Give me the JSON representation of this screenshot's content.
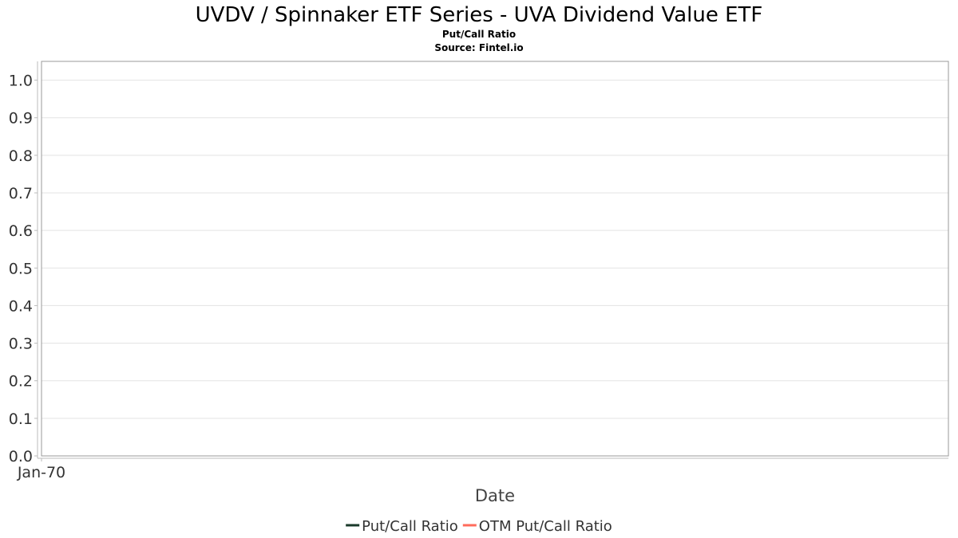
{
  "chart_data": {
    "type": "line",
    "title": "UVDV / Spinnaker ETF Series - UVA Dividend Value ETF",
    "subtitle": "Put/Call Ratio",
    "source": "Source: Fintel.io",
    "xlabel": "Date",
    "ylabel": "",
    "x_ticks": [
      "Jan-70"
    ],
    "y_ticks": [
      "0.0",
      "0.1",
      "0.2",
      "0.3",
      "0.4",
      "0.5",
      "0.6",
      "0.7",
      "0.8",
      "0.9",
      "1.0"
    ],
    "ylim": [
      0,
      1.05
    ],
    "grid": true,
    "legend_position": "bottom",
    "series": [
      {
        "name": "Put/Call Ratio",
        "color": "#1a3a2a",
        "values": []
      },
      {
        "name": "OTM Put/Call Ratio",
        "color": "#ff6b5b",
        "values": []
      }
    ]
  }
}
